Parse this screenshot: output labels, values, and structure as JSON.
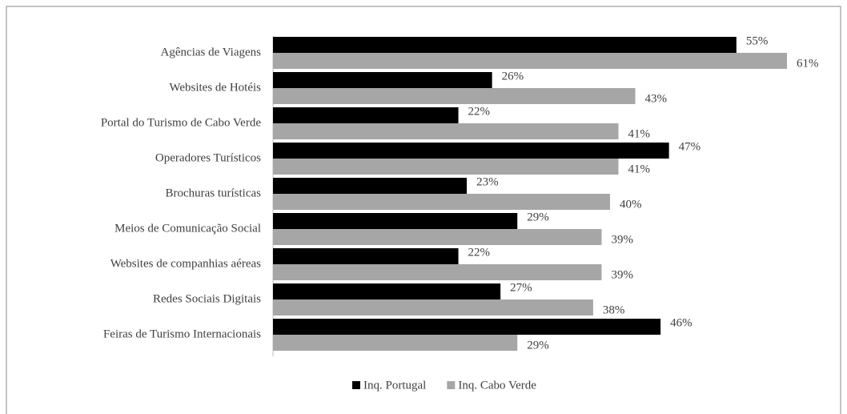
{
  "chart_data": {
    "type": "barh",
    "categories": [
      "Agências de Viagens",
      "Websites de Hotéis",
      "Portal do Turismo de Cabo Verde",
      "Operadores Turísticos",
      "Brochuras turísticas",
      "Meios de Comunicação Social",
      "Websites de companhias aéreas",
      "Redes Sociais Digitais",
      "Feiras de Turismo Internacionais"
    ],
    "series": [
      {
        "name": "Inq. Portugal",
        "color": "#000000",
        "values": [
          55,
          26,
          22,
          47,
          23,
          29,
          22,
          27,
          46
        ],
        "value_labels": [
          "55%",
          "26%",
          "22%",
          "47%",
          "23%",
          "29%",
          "22%",
          "27%",
          "46%"
        ]
      },
      {
        "name": "Inq. Cabo Verde",
        "color": "#a6a6a6",
        "values": [
          61,
          43,
          41,
          41,
          40,
          39,
          39,
          38,
          29
        ],
        "value_labels": [
          "61%",
          "43%",
          "41%",
          "41%",
          "40%",
          "39%",
          "39%",
          "38%",
          "29%"
        ]
      }
    ],
    "legend": "bottom"
  }
}
